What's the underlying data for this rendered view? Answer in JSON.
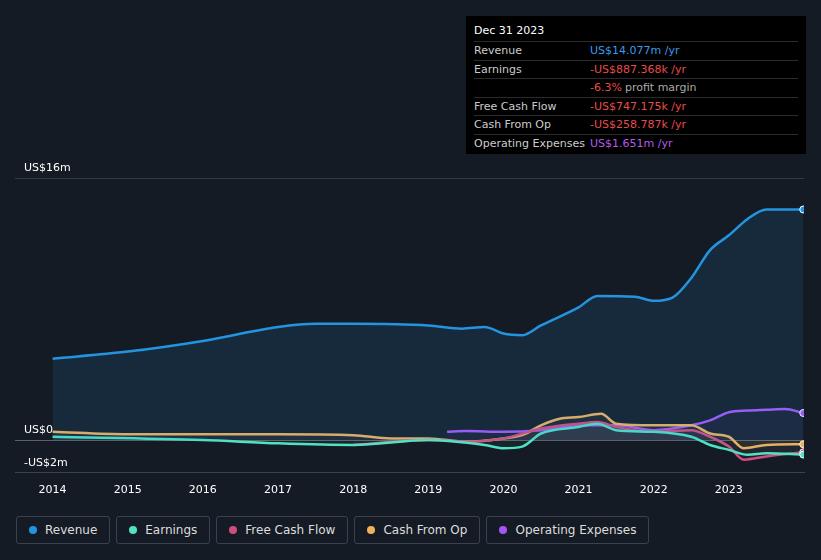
{
  "chart_data": {
    "type": "line",
    "annotations": {
      "title": "Dec 31 2023",
      "rows": [
        {
          "label": "Revenue",
          "text": "US$14.077m /yr",
          "color": "#3b9ae8"
        },
        {
          "label": "Earnings",
          "text": "-US$887.368k /yr",
          "color": "#e64c4c"
        },
        {
          "text": "-6.3%",
          "note": "profit margin",
          "color": "#e64c4c"
        },
        {
          "label": "Free Cash Flow",
          "text": "-US$747.175k /yr",
          "color": "#e64c4c"
        },
        {
          "label": "Cash From Op",
          "text": "-US$258.787k /yr",
          "color": "#e64c4c"
        },
        {
          "label": "Operating Expenses",
          "text": "US$1.651m /yr",
          "color": "#b35ce8"
        }
      ]
    },
    "xlim": [
      2013.5,
      2024
    ],
    "xticks": [
      2014,
      2015,
      2016,
      2017,
      2018,
      2019,
      2020,
      2021,
      2022,
      2023
    ],
    "ylim": [
      -2,
      16
    ],
    "yticks": [
      {
        "value": -2,
        "label": "-US$2m"
      },
      {
        "value": 0,
        "label": "US$0"
      },
      {
        "value": 16,
        "label": "US$16m"
      }
    ],
    "grid": true,
    "legend": "bottom",
    "series": [
      {
        "name": "Revenue",
        "color": "#2394df",
        "x": [
          2014,
          2015,
          2016,
          2017,
          2017.5,
          2018,
          2019,
          2019.45,
          2019.75,
          2020,
          2020.25,
          2020.5,
          2021,
          2021.25,
          2021.75,
          2022,
          2022.25,
          2022.5,
          2022.75,
          2023,
          2023.25,
          2023.5,
          2023.99
        ],
        "values": [
          4.97,
          5.4,
          6.05,
          6.9,
          7.1,
          7.1,
          7.0,
          6.8,
          6.9,
          6.5,
          6.4,
          7.0,
          8.1,
          8.8,
          8.75,
          8.5,
          8.7,
          9.9,
          11.6,
          12.5,
          13.5,
          14.08,
          14.077
        ]
      },
      {
        "name": "Earnings",
        "color": "#4fe3c3",
        "x": [
          2014,
          2016,
          2017,
          2018,
          2019,
          2019.75,
          2020,
          2020.25,
          2020.5,
          2021,
          2021.25,
          2021.5,
          2022,
          2022.5,
          2022.75,
          2023,
          2023.25,
          2023.5,
          2023.99
        ],
        "values": [
          0.2,
          0,
          -0.2,
          -0.3,
          0,
          -0.3,
          -0.5,
          -0.4,
          0.4,
          0.8,
          1.0,
          0.6,
          0.5,
          0.2,
          -0.3,
          -0.6,
          -0.9,
          -0.8,
          -0.887
        ]
      },
      {
        "name": "Free Cash Flow",
        "color": "#d14d7e",
        "x": [
          2018,
          2019,
          2019.5,
          2020,
          2020.5,
          2021,
          2021.25,
          2021.5,
          2022,
          2022.5,
          2022.75,
          2023,
          2023.2,
          2023.5,
          2023.99
        ],
        "values": [
          -0.3,
          0,
          -0.1,
          0.1,
          0.7,
          1.0,
          1.1,
          0.8,
          0.5,
          0.6,
          0.2,
          -0.4,
          -1.2,
          -1.0,
          -0.747
        ]
      },
      {
        "name": "Cash From Op",
        "color": "#f0b15e",
        "x": [
          2014,
          2015,
          2016,
          2017,
          2018,
          2018.5,
          2019,
          2019.5,
          2020,
          2020.25,
          2020.5,
          2020.75,
          2021,
          2021.3,
          2021.5,
          2022,
          2022.5,
          2022.75,
          2023,
          2023.2,
          2023.5,
          2023.99
        ],
        "values": [
          0.5,
          0.35,
          0.35,
          0.35,
          0.3,
          0.1,
          0.1,
          -0.1,
          0.1,
          0.3,
          0.9,
          1.3,
          1.4,
          1.6,
          1.0,
          0.9,
          0.9,
          0.4,
          0.2,
          -0.5,
          -0.3,
          -0.259
        ]
      },
      {
        "name": "Operating Expenses",
        "color": "#a855f7",
        "x": [
          2019.25,
          2019.5,
          2020,
          2020.5,
          2021,
          2021.5,
          2022,
          2022.5,
          2022.75,
          2023,
          2023.25,
          2023.5,
          2023.75,
          2023.99
        ],
        "values": [
          0.5,
          0.55,
          0.5,
          0.6,
          0.9,
          0.9,
          0.6,
          0.9,
          1.2,
          1.7,
          1.8,
          1.85,
          1.9,
          1.651
        ]
      }
    ]
  }
}
